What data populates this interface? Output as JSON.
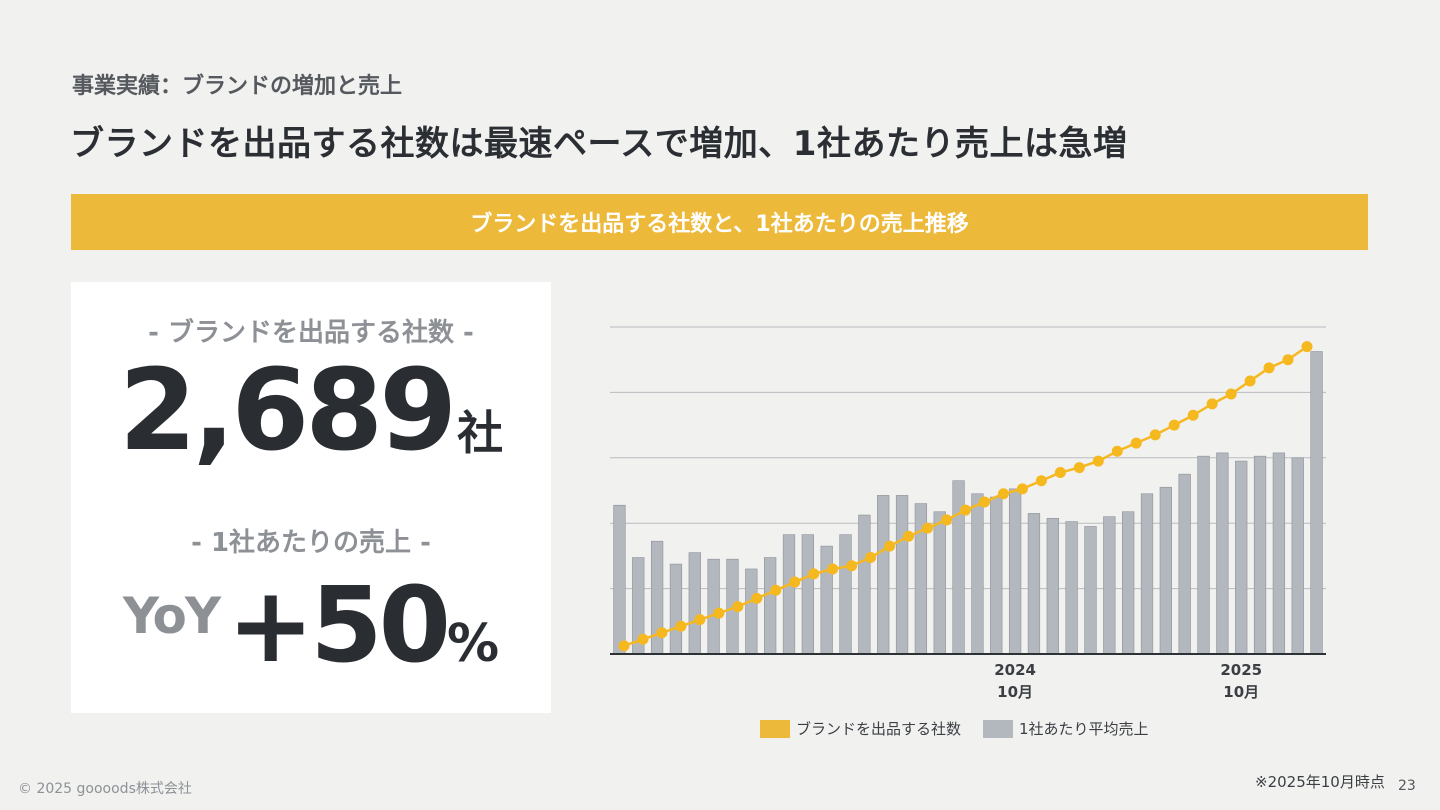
{
  "slide": {
    "subtitle": "事業実績：ブランドの増加と売上",
    "headline": "ブランドを出品する社数は最速ペースで増加、1社あたり売上は急増",
    "banner": "ブランドを出品する社数と、1社あたりの売上推移",
    "footnote": "※2025年10月時点",
    "page_number": "23",
    "copyright": "© 2025 goooods株式会社"
  },
  "kpi": {
    "brands_label": "- ブランドを出品する社数 -",
    "brands_value": "2,689",
    "brands_unit": "社",
    "sales_label": "- 1社あたりの売上 -",
    "yoy_prefix": "YoY",
    "yoy_value": "+50",
    "yoy_unit": "%"
  },
  "colors": {
    "accent": "#edb93a",
    "line": "#f5b81f",
    "bar": "#b3b8be",
    "text": "#2e3237"
  },
  "chart_data": {
    "type": "bar+line",
    "x_tick_labels": [
      {
        "index": 21,
        "year": "2024",
        "month": "10月"
      },
      {
        "index": 33,
        "year": "2025",
        "month": "10月"
      }
    ],
    "ylim": [
      0,
      100
    ],
    "gridlines": 5,
    "series": [
      {
        "name": "ブランドを出品する社数",
        "type": "line",
        "values": [
          2.5,
          4.5,
          6.5,
          8.5,
          10.5,
          12.5,
          14.5,
          17,
          19.5,
          22,
          24.5,
          26,
          27,
          29.5,
          33,
          36,
          38.5,
          41,
          44,
          46.5,
          49,
          50.5,
          53,
          55.5,
          57,
          59,
          62,
          64.5,
          67,
          70,
          73,
          76.5,
          79.5,
          83.5,
          87.5,
          90,
          94
        ]
      },
      {
        "name": "1社あたり平均売上",
        "type": "bar",
        "values": [
          45.5,
          29.5,
          34.5,
          27.5,
          31,
          29,
          29,
          26,
          29.5,
          36.5,
          36.5,
          33,
          36.5,
          42.5,
          48.5,
          48.5,
          46,
          43.5,
          53,
          49,
          48,
          50.5,
          43,
          41.5,
          40.5,
          39,
          42,
          43.5,
          49,
          51,
          55,
          60.5,
          61.5,
          59,
          60.5,
          61.5,
          60,
          92.5
        ]
      }
    ]
  }
}
